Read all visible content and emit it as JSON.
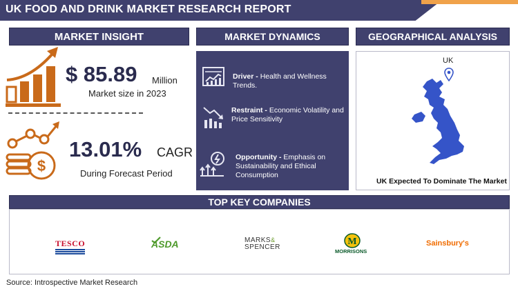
{
  "header": {
    "title": "UK FOOD AND DRINK MARKET RESEARCH REPORT"
  },
  "insight": {
    "title": "MARKET INSIGHT",
    "market_size": "$ 85.89",
    "market_size_unit": "Million",
    "market_size_label": "Market size in 2023",
    "cagr": "13.01%",
    "cagr_unit": "CAGR",
    "cagr_label": "During Forecast Period"
  },
  "dynamics": {
    "title": "MARKET DYNAMICS",
    "driver_label": "Driver -",
    "driver_text": "Health and Wellness Trends.",
    "restraint_label": "Restraint -",
    "restraint_text": "Economic Volatility and Price Sensitivity",
    "opportunity_label": "Opportunity -",
    "opportunity_text": "Emphasis on Sustainability and Ethical Consumption"
  },
  "geography": {
    "title": "GEOGRAPHICAL ANALYSIS",
    "country": "UK",
    "caption": "UK Expected To Dominate The Market"
  },
  "companies": {
    "title": "TOP KEY COMPANIES",
    "tesco": "TESCO",
    "asda": "ASDA",
    "ms_line1": "MARKS",
    "ms_amp": "&",
    "ms_line2": "SPENCER",
    "morrisons_mark": "M",
    "morrisons": "MORRISONS",
    "sainsburys": "Sainsbury's"
  },
  "source": "Source: Introspective Market Research",
  "colors": {
    "navy": "#40416e",
    "orange": "#c96a1a",
    "accent": "#f0a24a",
    "map_blue": "#3554c8"
  },
  "icons": [
    "bar-growth-icon",
    "coin-growth-icon",
    "driver-icon",
    "restraint-icon",
    "opportunity-icon",
    "map-pin-icon",
    "uk-map-icon"
  ]
}
